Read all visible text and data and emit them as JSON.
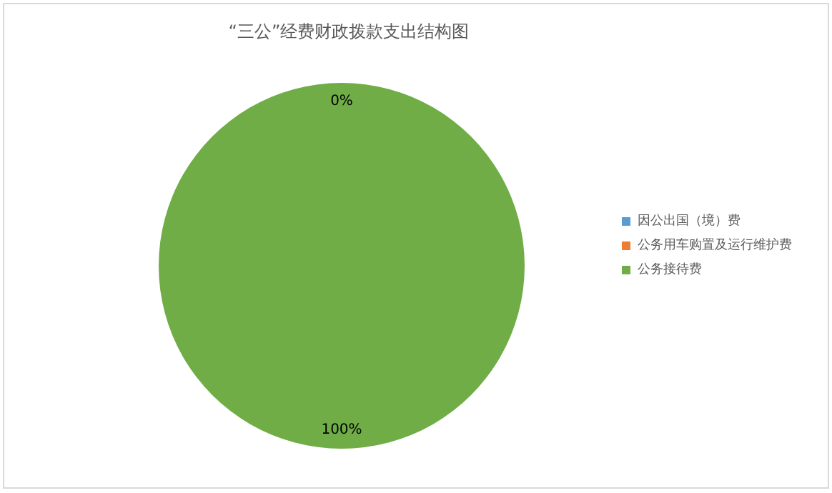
{
  "chart_data": {
    "type": "pie",
    "title": "“三公”经费财政拨款支出结构图",
    "categories": [
      "因公出国（境）费",
      "公务用车购置及运行维护费",
      "公务接待费"
    ],
    "values": [
      0,
      0,
      100
    ],
    "colors": [
      "#5b9bd5",
      "#ed7d31",
      "#70ad47"
    ],
    "value_labels": [
      "0%",
      null,
      "100%"
    ],
    "legend": "right"
  }
}
